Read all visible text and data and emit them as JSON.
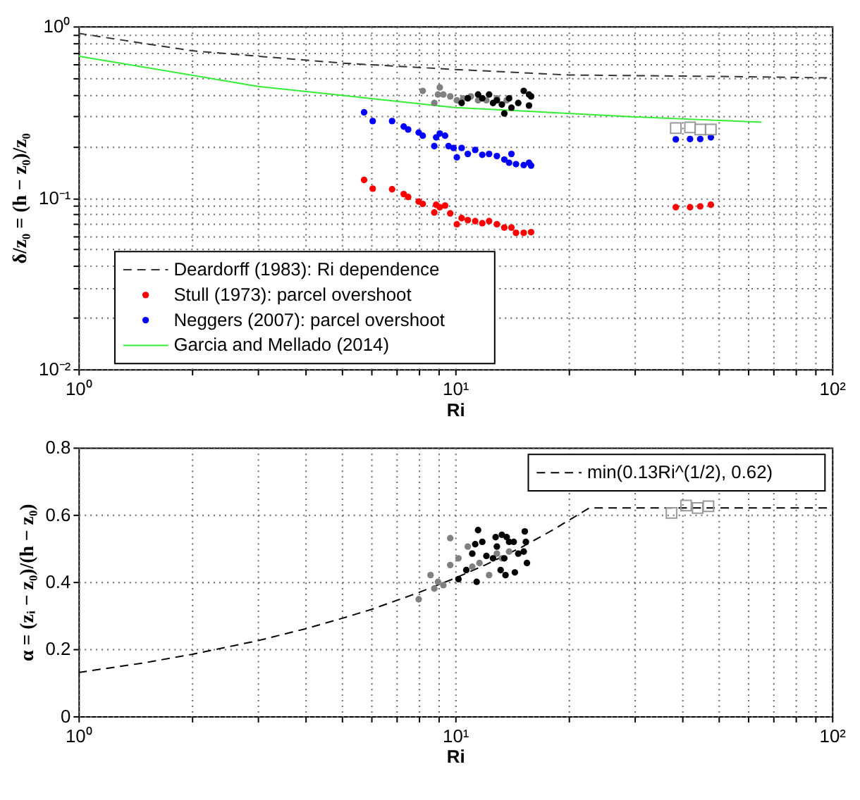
{
  "chart_data": [
    {
      "type": "scatter",
      "xlabel": "Ri",
      "ylabel": "δ/z₀ = (h − z₀)/z₀",
      "log": "xy",
      "grid": true,
      "legend": "bottom left",
      "xlim": [
        1,
        100
      ],
      "ylim": [
        0.01,
        1
      ],
      "xticks": [
        {
          "value": 1,
          "label": "10⁰"
        },
        {
          "value": 2,
          "label": null
        },
        {
          "value": 3,
          "label": null
        },
        {
          "value": 4,
          "label": null
        },
        {
          "value": 5,
          "label": null
        },
        {
          "value": 6,
          "label": null
        },
        {
          "value": 7,
          "label": null
        },
        {
          "value": 8,
          "label": null
        },
        {
          "value": 9,
          "label": null
        },
        {
          "value": 10,
          "label": "10¹"
        },
        {
          "value": 20,
          "label": null
        },
        {
          "value": 30,
          "label": null
        },
        {
          "value": 40,
          "label": null
        },
        {
          "value": 50,
          "label": null
        },
        {
          "value": 60,
          "label": null
        },
        {
          "value": 70,
          "label": null
        },
        {
          "value": 80,
          "label": null
        },
        {
          "value": 90,
          "label": null
        },
        {
          "value": 100,
          "label": "10²"
        }
      ],
      "yticks": [
        {
          "value": 0.01,
          "label": "10⁻²"
        },
        {
          "value": 0.02,
          "label": null
        },
        {
          "value": 0.03,
          "label": null
        },
        {
          "value": 0.04,
          "label": null
        },
        {
          "value": 0.05,
          "label": null
        },
        {
          "value": 0.06,
          "label": null
        },
        {
          "value": 0.07,
          "label": null
        },
        {
          "value": 0.08,
          "label": null
        },
        {
          "value": 0.09,
          "label": null
        },
        {
          "value": 0.1,
          "label": "10⁻¹"
        },
        {
          "value": 0.2,
          "label": null
        },
        {
          "value": 0.3,
          "label": null
        },
        {
          "value": 0.4,
          "label": null
        },
        {
          "value": 0.5,
          "label": null
        },
        {
          "value": 0.6,
          "label": null
        },
        {
          "value": 0.7,
          "label": null
        },
        {
          "value": 0.8,
          "label": null
        },
        {
          "value": 0.9,
          "label": null
        },
        {
          "value": 1,
          "label": "10⁰"
        }
      ],
      "series": [
        {
          "name": "Deardorff (1983): Ri dependence",
          "type": "line",
          "line_style": "dashed",
          "color": "#333333",
          "x": [
            1,
            2,
            5,
            10,
            20,
            50,
            100
          ],
          "values": [
            0.91,
            0.72,
            0.61,
            0.56,
            0.52,
            0.51,
            0.5
          ]
        },
        {
          "name": "Stull (1973): parcel overshoot",
          "type": "scatter",
          "marker": "circle",
          "color": "#ff0000",
          "x": [
            5.73,
            6.04,
            6.8,
            7.3,
            7.5,
            8.0,
            8.2,
            8.9,
            9.1,
            9.4,
            8.8,
            9.7,
            10.1,
            10.4,
            10.8,
            11.3,
            11.8,
            12.3,
            12.9,
            13.5,
            14.1,
            14.5,
            15.2,
            15.9,
            38.5,
            42,
            44.7,
            47.7
          ],
          "values": [
            0.127,
            0.113,
            0.112,
            0.105,
            0.101,
            0.095,
            0.092,
            0.091,
            0.088,
            0.09,
            0.082,
            0.081,
            0.07,
            0.076,
            0.074,
            0.073,
            0.071,
            0.073,
            0.07,
            0.067,
            0.067,
            0.0624,
            0.0624,
            0.063,
            0.088,
            0.088,
            0.089,
            0.091
          ]
        },
        {
          "name": "Neggers (2007): parcel overshoot",
          "type": "scatter",
          "marker": "circle",
          "color": "#0000ff",
          "x": [
            5.73,
            6.04,
            6.8,
            7.3,
            7.5,
            8.0,
            8.2,
            8.9,
            9.1,
            9.4,
            8.8,
            9.6,
            9.9,
            10.1,
            10.4,
            10.8,
            11.3,
            11.8,
            12.3,
            12.9,
            13.5,
            14.1,
            13.9,
            14.5,
            15.2,
            15.7,
            15.9,
            38.5,
            42,
            44.7,
            47.7
          ],
          "values": [
            0.315,
            0.28,
            0.28,
            0.26,
            0.25,
            0.24,
            0.23,
            0.225,
            0.237,
            0.23,
            0.2,
            0.2,
            0.195,
            0.172,
            0.195,
            0.18,
            0.19,
            0.178,
            0.18,
            0.175,
            0.167,
            0.18,
            0.16,
            0.157,
            0.155,
            0.16,
            0.154,
            0.219,
            0.22,
            0.22,
            0.225
          ]
        },
        {
          "name": "Garcia and Mellado (2014)",
          "type": "line",
          "line_style": "solid",
          "color": "#33ee33",
          "x": [
            1,
            3,
            10,
            30,
            65
          ],
          "values": [
            0.67,
            0.446,
            0.336,
            0.296,
            0.276
          ]
        },
        {
          "type": "scatter",
          "marker": "circle",
          "color": "#808080",
          "x": [
            8.2,
            9.0,
            9.1,
            8.8,
            9.3,
            9.7,
            10.1,
            10.5,
            11.0,
            11.5,
            12.1,
            12.9,
            13.7
          ],
          "values": [
            0.42,
            0.4,
            0.44,
            0.357,
            0.4,
            0.39,
            0.37,
            0.38,
            0.39,
            0.37,
            0.37,
            0.38,
            0.37
          ]
        },
        {
          "type": "scatter",
          "marker": "circle",
          "color": "#000000",
          "x": [
            10.4,
            10.8,
            11.5,
            11.8,
            12.3,
            12.6,
            12.9,
            13.3,
            13.5,
            13.9,
            14.1,
            14.7,
            15.2,
            15.7,
            15.7,
            15.9
          ],
          "values": [
            0.357,
            0.38,
            0.4,
            0.38,
            0.4,
            0.357,
            0.37,
            0.35,
            0.31,
            0.38,
            0.335,
            0.357,
            0.42,
            0.4,
            0.345,
            0.39
          ]
        },
        {
          "type": "scatter",
          "marker": "square",
          "color": "#999999",
          "x": [
            38.5,
            42,
            44.7,
            47.7
          ],
          "values": [
            0.255,
            0.257,
            0.25,
            0.25
          ]
        }
      ]
    },
    {
      "type": "scatter",
      "xlabel": "Ri",
      "ylabel": "α = (zᵢ − z₀)/(h − z₀)",
      "log": "x",
      "grid": true,
      "legend": "top right",
      "xlim": [
        1,
        100
      ],
      "ylim": [
        0,
        0.8
      ],
      "xticks": [
        {
          "value": 1,
          "label": "10⁰"
        },
        {
          "value": 2,
          "label": null
        },
        {
          "value": 3,
          "label": null
        },
        {
          "value": 4,
          "label": null
        },
        {
          "value": 5,
          "label": null
        },
        {
          "value": 6,
          "label": null
        },
        {
          "value": 7,
          "label": null
        },
        {
          "value": 8,
          "label": null
        },
        {
          "value": 9,
          "label": null
        },
        {
          "value": 10,
          "label": "10¹"
        },
        {
          "value": 20,
          "label": null
        },
        {
          "value": 30,
          "label": null
        },
        {
          "value": 40,
          "label": null
        },
        {
          "value": 50,
          "label": null
        },
        {
          "value": 60,
          "label": null
        },
        {
          "value": 70,
          "label": null
        },
        {
          "value": 80,
          "label": null
        },
        {
          "value": 90,
          "label": null
        },
        {
          "value": 100,
          "label": "10²"
        }
      ],
      "yticks": [
        0,
        0.2,
        0.4,
        0.6,
        0.8
      ],
      "series": [
        {
          "name": "min(0.13Ri^(1/2), 0.62)",
          "type": "line",
          "line_style": "dashed",
          "color": "#000000",
          "x": [
            1,
            1.5,
            2,
            3,
            4,
            5,
            6,
            8,
            10,
            12,
            15,
            18,
            22.7,
            100
          ],
          "values": [
            0.13,
            0.159,
            0.184,
            0.225,
            0.26,
            0.291,
            0.318,
            0.368,
            0.411,
            0.45,
            0.503,
            0.552,
            0.62,
            0.62
          ]
        },
        {
          "type": "scatter",
          "marker": "circle",
          "color": "#808080",
          "x": [
            8.0,
            8.6,
            8.8,
            9.0,
            9.3,
            9.7,
            9.7,
            10.2,
            10.8,
            11.1,
            11.6,
            12.3,
            12.9,
            13.9,
            13.3
          ],
          "values": [
            0.348,
            0.42,
            0.38,
            0.4,
            0.39,
            0.53,
            0.45,
            0.47,
            0.505,
            0.445,
            0.456,
            0.42,
            0.484,
            0.49,
            0.47
          ]
        },
        {
          "type": "scatter",
          "marker": "circle",
          "color": "#000000",
          "x": [
            10.2,
            10.7,
            11.1,
            11.3,
            11.5,
            11.4,
            11.8,
            12.1,
            12.6,
            12.8,
            12.9,
            13.2,
            13.3,
            13.5,
            13.6,
            13.7,
            13.9,
            14.3,
            14.4,
            14.7,
            15.2,
            15.3,
            15.4,
            15.5
          ],
          "values": [
            0.408,
            0.435,
            0.484,
            0.512,
            0.554,
            0.4,
            0.519,
            0.477,
            0.47,
            0.533,
            0.505,
            0.435,
            0.54,
            0.47,
            0.42,
            0.533,
            0.519,
            0.519,
            0.428,
            0.484,
            0.49,
            0.55,
            0.519,
            0.456
          ]
        },
        {
          "type": "scatter",
          "marker": "square",
          "color": "#999999",
          "x": [
            37.5,
            41,
            44,
            47
          ],
          "values": [
            0.605,
            0.627,
            0.62,
            0.625
          ]
        }
      ]
    }
  ]
}
